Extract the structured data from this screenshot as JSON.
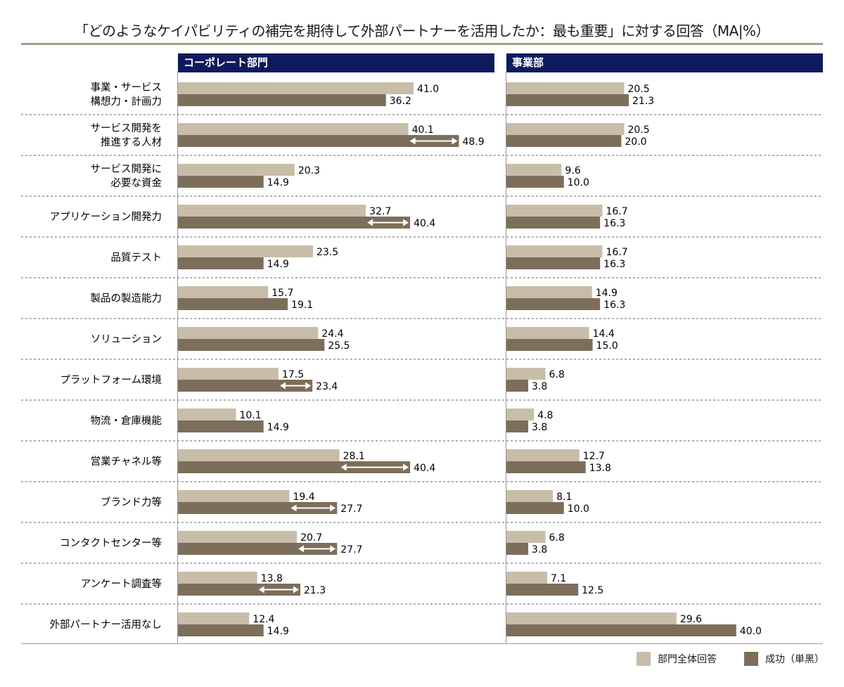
{
  "chart_data": {
    "type": "bar",
    "orientation": "horizontal",
    "title": "「どのようなケイパビリティの補完を期待して外部パートナーを活用したか：最も重要」に対する回答（MA|%）",
    "categories": [
      [
        "事業・サービス",
        "構想力・計画力"
      ],
      [
        "サービス開発を",
        "推進する人材"
      ],
      [
        "サービス開発に",
        "必要な資金"
      ],
      [
        "アプリケーション開発力"
      ],
      [
        "品質テスト"
      ],
      [
        "製品の製造能力"
      ],
      [
        "ソリューション"
      ],
      [
        "プラットフォーム環境"
      ],
      [
        "物流・倉庫機能"
      ],
      [
        "営業チャネル等"
      ],
      [
        "ブランド力等"
      ],
      [
        "コンタクトセンター等"
      ],
      [
        "アンケート調査等"
      ],
      [
        "外部パートナー活用なし"
      ]
    ],
    "legend": [
      "部門全体回答",
      "成功（単黒）"
    ],
    "colors": {
      "all": "#c8bda9",
      "success": "#7d6e5b",
      "header": "#0f1a5c"
    },
    "panels": [
      {
        "title": "コーポレート部門",
        "series": [
          {
            "name": "部門全体回答",
            "values": [
              41.0,
              40.1,
              20.3,
              32.7,
              23.5,
              15.7,
              24.4,
              17.5,
              10.1,
              28.1,
              19.4,
              20.7,
              13.8,
              12.4
            ]
          },
          {
            "name": "成功（単黒）",
            "values": [
              36.2,
              48.9,
              14.9,
              40.4,
              14.9,
              19.1,
              25.5,
              23.4,
              14.9,
              40.4,
              27.7,
              27.7,
              21.3,
              14.9
            ]
          }
        ],
        "difference_arrows": [
          false,
          true,
          false,
          true,
          false,
          false,
          false,
          true,
          false,
          true,
          true,
          true,
          true,
          false
        ]
      },
      {
        "title": "事業部",
        "series": [
          {
            "name": "部門全体回答",
            "values": [
              20.5,
              20.5,
              9.6,
              16.7,
              16.7,
              14.9,
              14.4,
              6.8,
              4.8,
              12.7,
              8.1,
              6.8,
              7.1,
              29.6
            ]
          },
          {
            "name": "成功（単黒）",
            "values": [
              21.3,
              20.0,
              10.0,
              16.3,
              16.3,
              16.3,
              15.0,
              3.8,
              3.8,
              13.8,
              10.0,
              3.8,
              12.5,
              40.0
            ]
          }
        ],
        "difference_arrows": [
          false,
          false,
          false,
          false,
          false,
          false,
          false,
          false,
          false,
          false,
          false,
          false,
          false,
          false
        ]
      }
    ]
  }
}
